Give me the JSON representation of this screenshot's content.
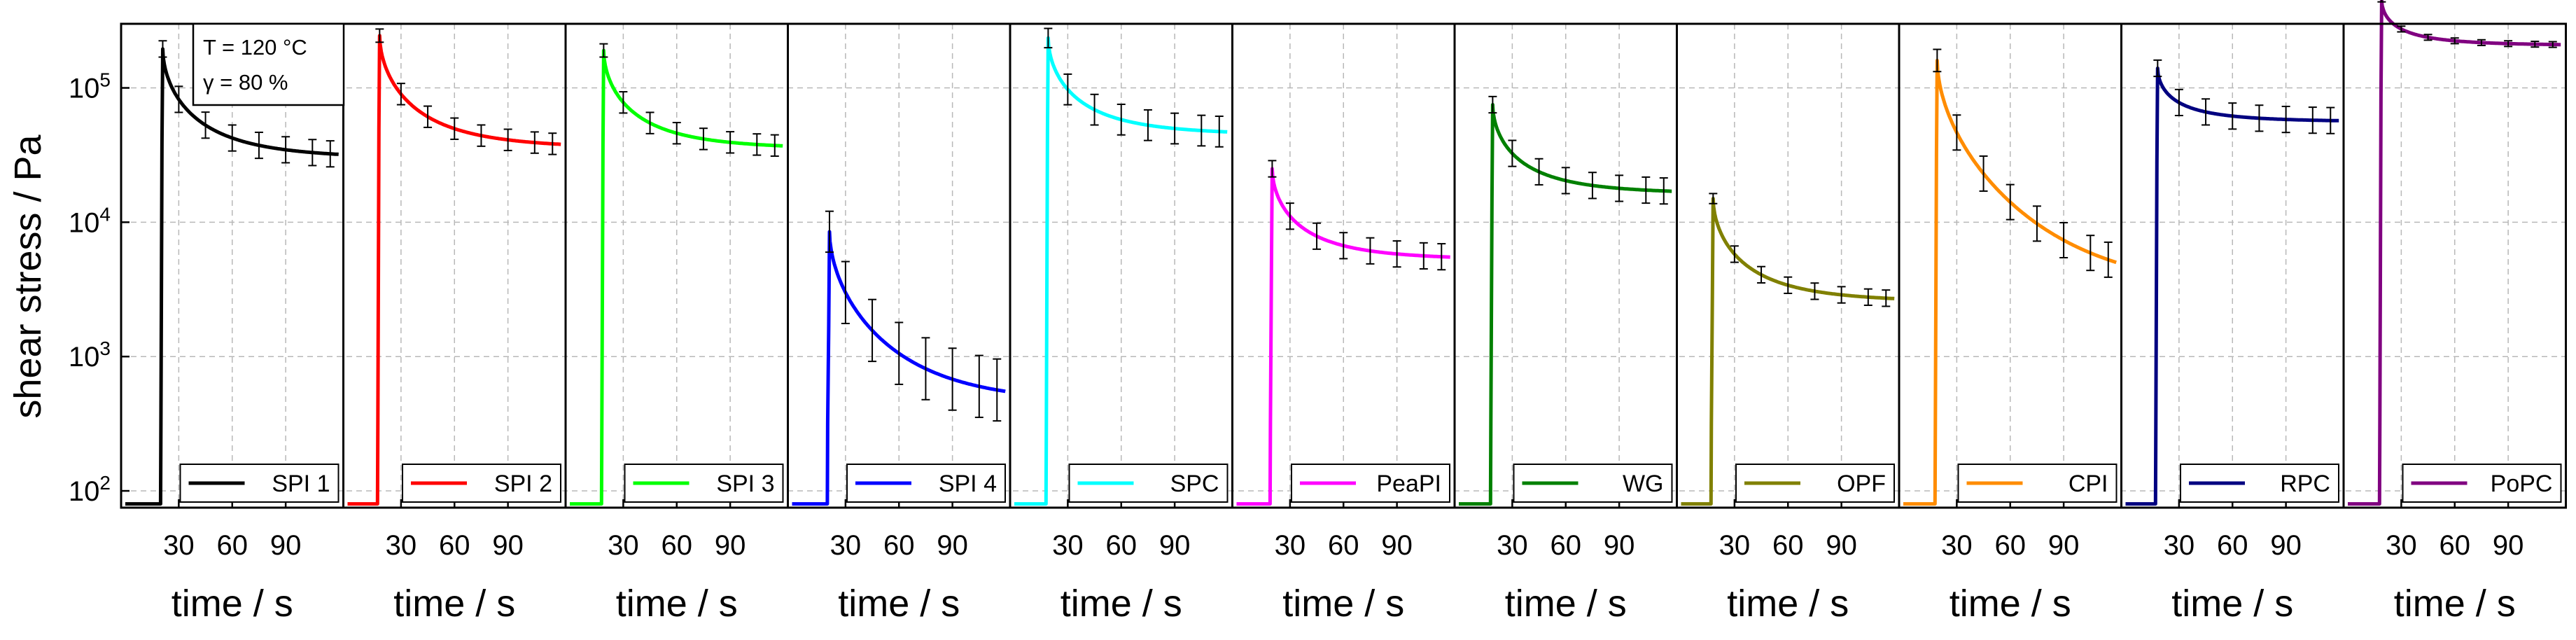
{
  "figure": {
    "ylabel": "shear stress / Pa",
    "annotation": {
      "line1": "T = 120 °C",
      "line2": "γ = 80 %"
    }
  },
  "chart_data": {
    "type": "line",
    "ylabel": "shear stress / Pa",
    "xlabel": "time / s",
    "y_scale": "log",
    "ylim": [
      75,
      300000
    ],
    "xlim": [
      0,
      120
    ],
    "xticks": [
      30,
      60,
      90
    ],
    "yticks": [
      {
        "value": 100,
        "mantissa": "10",
        "exponent": "2"
      },
      {
        "value": 1000,
        "mantissa": "10",
        "exponent": "3"
      },
      {
        "value": 10000,
        "mantissa": "10",
        "exponent": "4"
      },
      {
        "value": 100000,
        "mantissa": "10",
        "exponent": "5"
      }
    ],
    "grid": true,
    "legend_position": "bottom-right",
    "annotation": "T = 120 °C, γ = 80 %",
    "series": [
      {
        "name": "SPI 1",
        "color": "#000000",
        "baseline": 80,
        "onset": 21,
        "peak": 195000,
        "final": 32000,
        "err_factor": 0.25
      },
      {
        "name": "SPI 2",
        "color": "#ff0000",
        "baseline": 80,
        "onset": 18,
        "peak": 245000,
        "final": 38000,
        "err_factor": 0.2
      },
      {
        "name": "SPI 3",
        "color": "#00ff00",
        "baseline": 80,
        "onset": 19,
        "peak": 190000,
        "final": 37000,
        "err_factor": 0.2
      },
      {
        "name": "SPI 4",
        "color": "#0000ff",
        "baseline": 80,
        "onset": 21,
        "peak": 8500,
        "final": 550,
        "err_factor": 0.7
      },
      {
        "name": "SPC",
        "color": "#00ffff",
        "baseline": 80,
        "onset": 19,
        "peak": 235000,
        "final": 47000,
        "err_factor": 0.3
      },
      {
        "name": "PeaPI",
        "color": "#ff00ff",
        "baseline": 80,
        "onset": 20,
        "peak": 25000,
        "final": 5500,
        "err_factor": 0.25
      },
      {
        "name": "WG",
        "color": "#008000",
        "baseline": 80,
        "onset": 19,
        "peak": 75000,
        "final": 17000,
        "err_factor": 0.25
      },
      {
        "name": "OPF",
        "color": "#808000",
        "baseline": 80,
        "onset": 18,
        "peak": 15000,
        "final": 2700,
        "err_factor": 0.15
      },
      {
        "name": "CPI",
        "color": "#ff8c00",
        "baseline": 80,
        "onset": 19,
        "peak": 160000,
        "final": 5000,
        "err_factor": 0.35
      },
      {
        "name": "RPC",
        "color": "#000080",
        "baseline": 80,
        "onset": 18,
        "peak": 140000,
        "final": 57000,
        "err_factor": 0.25
      },
      {
        "name": "PoPC",
        "color": "#800080",
        "baseline": 80,
        "onset": 19,
        "peak": 450000,
        "final": 210000,
        "err_factor": 0.05
      }
    ]
  }
}
